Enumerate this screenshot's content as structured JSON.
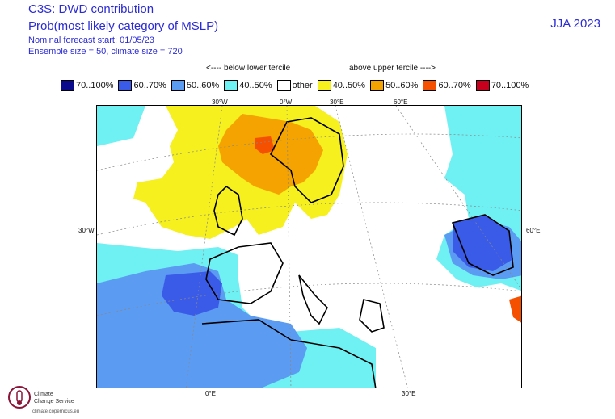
{
  "header": {
    "title": "C3S: DWD contribution",
    "subtitle": "Prob(most likely category of MSLP)",
    "forecast_start": "Nominal forecast start: 01/05/23",
    "ensemble": "Ensemble size = 50, climate size = 720",
    "season": "JJA 2023"
  },
  "tercile": {
    "below": "<---- below lower tercile",
    "above": "above upper tercile ---->"
  },
  "legend": [
    {
      "label": "70..100%",
      "color": "#0a0a8c"
    },
    {
      "label": "60..70%",
      "color": "#3a5be8"
    },
    {
      "label": "50..60%",
      "color": "#5b9bf2"
    },
    {
      "label": "40..50%",
      "color": "#6ff0f2"
    },
    {
      "label": "other",
      "color": "#ffffff"
    },
    {
      "label": "40..50%",
      "color": "#f5f01e"
    },
    {
      "label": "50..60%",
      "color": "#f5a300"
    },
    {
      "label": "60..70%",
      "color": "#f55000"
    },
    {
      "label": "70..100%",
      "color": "#c8001e"
    }
  ],
  "grid_labels": {
    "top": [
      "30°W",
      "0°W",
      "30°E",
      "60°E"
    ],
    "left": "30°W",
    "right": "60°E",
    "bottom": [
      "0°E",
      "30°E"
    ]
  },
  "logo": {
    "line1": "Climate",
    "line2": "Change Service",
    "url": "climate.copernicus.eu"
  }
}
